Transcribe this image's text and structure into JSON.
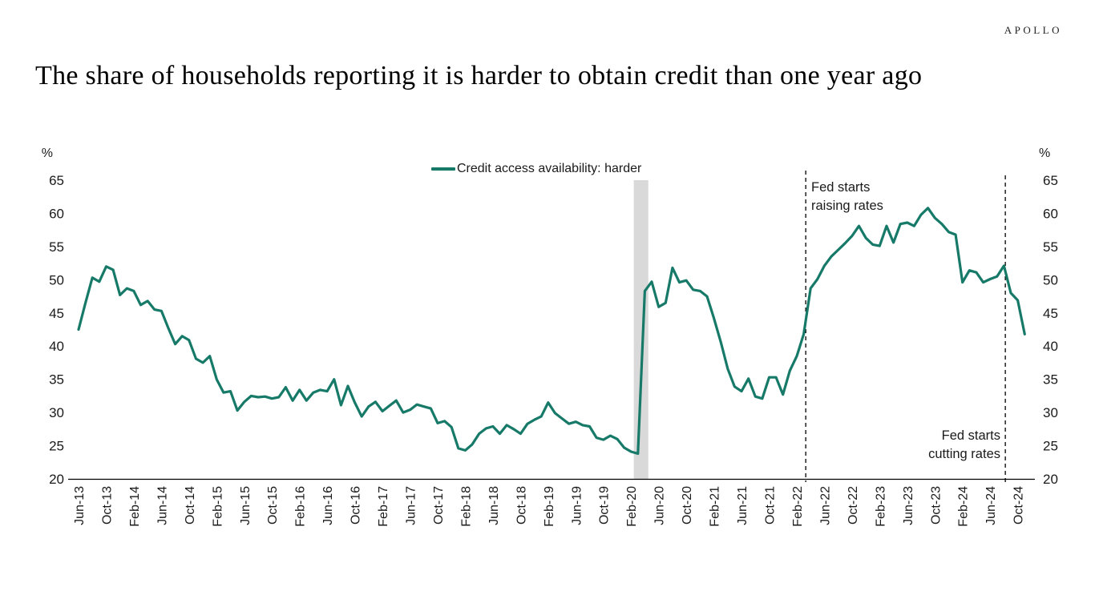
{
  "brand": "APOLLO",
  "title": "The share of households reporting it is harder to obtain credit than one year ago",
  "chart_data": {
    "type": "line",
    "title": "The share of households reporting it is harder to obtain credit than one year ago",
    "unit_label": "%",
    "ylim": [
      20,
      65
    ],
    "y_ticks": [
      65,
      60,
      55,
      50,
      45,
      40,
      35,
      30,
      25,
      20
    ],
    "grid": "off",
    "legend_position": "top-center",
    "x_tick_labels": [
      "Jun-13",
      "Oct-13",
      "Feb-14",
      "Jun-14",
      "Oct-14",
      "Feb-15",
      "Jun-15",
      "Oct-15",
      "Feb-16",
      "Jun-16",
      "Oct-16",
      "Feb-17",
      "Jun-17",
      "Oct-17",
      "Feb-18",
      "Jun-18",
      "Oct-18",
      "Feb-19",
      "Jun-19",
      "Oct-19",
      "Feb-20",
      "Jun-20",
      "Oct-20",
      "Feb-21",
      "Jun-21",
      "Oct-21",
      "Feb-22",
      "Jun-22",
      "Oct-22",
      "Feb-23",
      "Jun-23",
      "Oct-23",
      "Feb-24",
      "Jun-24",
      "Oct-24"
    ],
    "x_tick_month_step": 4,
    "series": [
      {
        "name": "Credit access availability: harder",
        "color": "#177a69",
        "frequency": "monthly",
        "start": "Jun-13",
        "end": "Nov-24",
        "values": [
          42.5,
          46.5,
          50.3,
          49.7,
          52.0,
          51.5,
          47.7,
          48.7,
          48.3,
          46.2,
          46.8,
          45.5,
          45.3,
          42.7,
          40.3,
          41.5,
          40.9,
          38.1,
          37.5,
          38.5,
          35.0,
          33.0,
          33.2,
          30.3,
          31.6,
          32.5,
          32.3,
          32.4,
          32.1,
          32.3,
          33.8,
          31.8,
          33.4,
          31.8,
          33.0,
          33.4,
          33.2,
          35.0,
          31.1,
          34.0,
          31.5,
          29.4,
          30.9,
          31.6,
          30.2,
          31.0,
          31.8,
          30.0,
          30.4,
          31.2,
          30.9,
          30.6,
          28.4,
          28.7,
          27.8,
          24.6,
          24.3,
          25.2,
          26.8,
          27.6,
          27.9,
          26.8,
          28.1,
          27.5,
          26.8,
          28.3,
          28.9,
          29.4,
          31.5,
          29.9,
          29.1,
          28.3,
          28.6,
          28.1,
          27.9,
          26.2,
          25.9,
          26.5,
          26.0,
          24.7,
          24.1,
          23.8,
          48.3,
          49.7,
          45.9,
          46.5,
          51.8,
          49.6,
          49.9,
          48.5,
          48.3,
          47.5,
          44.2,
          40.6,
          36.6,
          33.9,
          33.2,
          35.1,
          32.4,
          32.1,
          35.3,
          35.3,
          32.7,
          36.3,
          38.5,
          41.8,
          48.7,
          50.1,
          52.1,
          53.5,
          54.5,
          55.5,
          56.6,
          58.1,
          56.3,
          55.3,
          55.1,
          58.1,
          55.6,
          58.4,
          58.6,
          58.1,
          59.8,
          60.8,
          59.3,
          58.4,
          57.2,
          56.8,
          49.6,
          51.4,
          51.1,
          49.6,
          50.1,
          50.5,
          52.1,
          48.0,
          46.9,
          41.8
        ]
      }
    ],
    "annotations": [
      {
        "text": [
          "Fed starts",
          "raising rates"
        ],
        "month_index": 105.3,
        "line_top": 213,
        "align": "left"
      },
      {
        "text": [
          "Fed starts",
          "cutting rates"
        ],
        "month_index": 134.2,
        "line_top": 219,
        "align": "right"
      }
    ],
    "shaded_band": {
      "month_from": 80.4,
      "month_to": 82.5,
      "color": "#d9d9d9"
    },
    "axis_color": "#000000",
    "tick_text_color": "#1a1a1a"
  }
}
